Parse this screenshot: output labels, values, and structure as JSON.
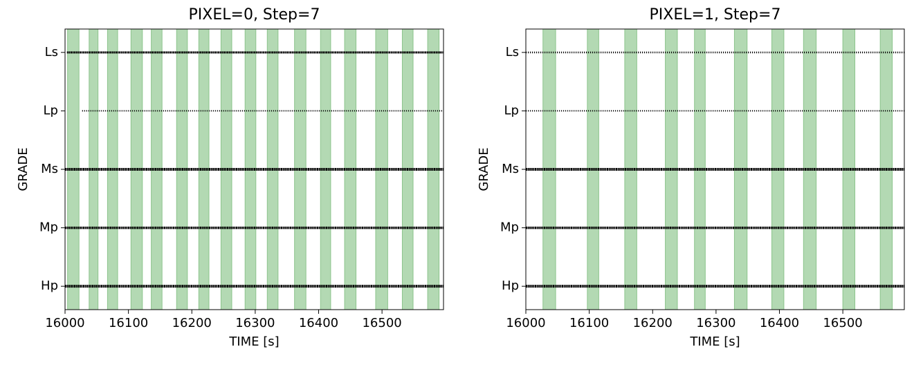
{
  "chart_data": [
    {
      "type": "event",
      "title": "PIXEL=0, Step=7",
      "xlabel": "TIME [s]",
      "ylabel": "GRADE",
      "categories": [
        "Hp",
        "Mp",
        "Ms",
        "Lp",
        "Ls"
      ],
      "events": [
        [
          16000,
          16597
        ],
        [
          16000,
          16597
        ],
        [
          16000,
          16597
        ],
        [
          16027,
          16597
        ],
        [
          16003,
          16597
        ]
      ],
      "marker_sizes": [
        4,
        3.5,
        4,
        2,
        3
      ],
      "marker_color": "#000000",
      "xlim": [
        16000,
        16597
      ],
      "xticks": [
        16000,
        16100,
        16200,
        16300,
        16400,
        16500
      ],
      "ylim": [
        -0.4,
        4.4
      ],
      "span_color": "#b3d9b3",
      "spans": [
        [
          16004,
          16022
        ],
        [
          16038,
          16052
        ],
        [
          16067,
          16083
        ],
        [
          16104,
          16122
        ],
        [
          16136,
          16153
        ],
        [
          16176,
          16193
        ],
        [
          16211,
          16227
        ],
        [
          16246,
          16263
        ],
        [
          16284,
          16301
        ],
        [
          16319,
          16336
        ],
        [
          16362,
          16380
        ],
        [
          16403,
          16419
        ],
        [
          16441,
          16459
        ],
        [
          16490,
          16509
        ],
        [
          16532,
          16549
        ],
        [
          16572,
          16590
        ]
      ]
    },
    {
      "type": "event",
      "title": "PIXEL=1, Step=7",
      "xlabel": "TIME [s]",
      "ylabel": "GRADE",
      "categories": [
        "Hp",
        "Mp",
        "Ms",
        "Lp",
        "Ls"
      ],
      "events": [
        [
          16000,
          16597
        ],
        [
          16000,
          16597
        ],
        [
          16000,
          16597
        ],
        [
          16000,
          16597
        ],
        [
          16000,
          16597
        ]
      ],
      "marker_sizes": [
        4,
        3.5,
        4,
        2,
        2.5
      ],
      "marker_color": "#000000",
      "xlim": [
        16000,
        16597
      ],
      "xticks": [
        16000,
        16100,
        16200,
        16300,
        16400,
        16500
      ],
      "ylim": [
        -0.4,
        4.4
      ],
      "span_color": "#b3d9b3",
      "spans": [
        [
          16027,
          16047
        ],
        [
          16097,
          16115
        ],
        [
          16156,
          16175
        ],
        [
          16220,
          16239
        ],
        [
          16266,
          16283
        ],
        [
          16329,
          16349
        ],
        [
          16388,
          16407
        ],
        [
          16438,
          16458
        ],
        [
          16500,
          16519
        ],
        [
          16559,
          16578
        ]
      ]
    }
  ]
}
